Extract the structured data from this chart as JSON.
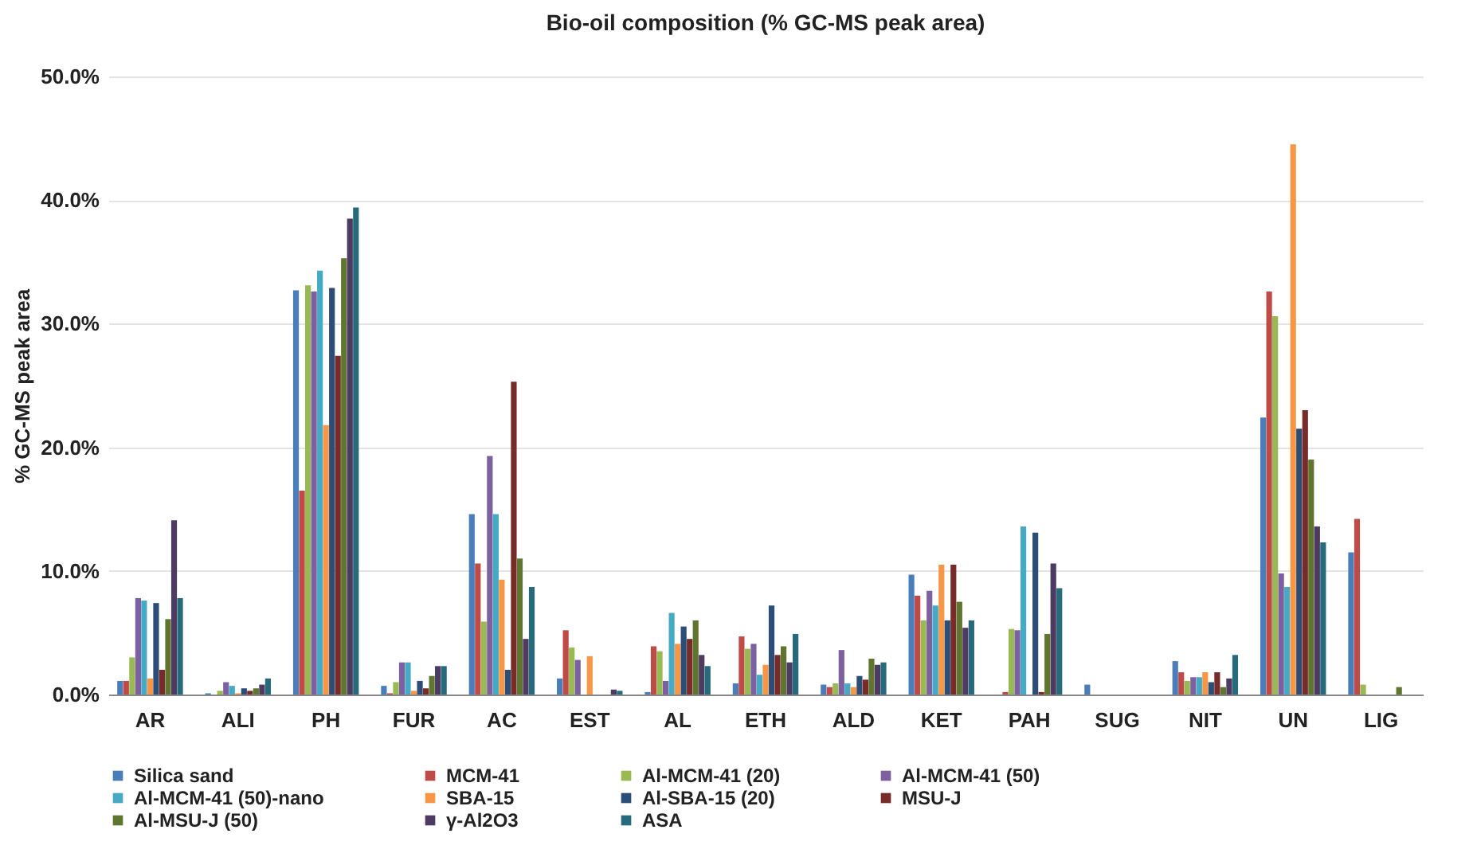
{
  "chart_data": {
    "type": "bar",
    "title": "Bio-oil composition (% GC-MS peak area)",
    "ylabel": "% GC-MS peak area",
    "categories": [
      "AR",
      "ALI",
      "PH",
      "FUR",
      "AC",
      "EST",
      "AL",
      "ETH",
      "ALD",
      "KET",
      "PAH",
      "SUG",
      "NIT",
      "UN",
      "LIG"
    ],
    "ylim": [
      0,
      50
    ],
    "yticks": [
      {
        "value": 0,
        "label": "0.0%"
      },
      {
        "value": 10,
        "label": "10.0%"
      },
      {
        "value": 20,
        "label": "20.0%"
      },
      {
        "value": 30,
        "label": "30.0%"
      },
      {
        "value": 40,
        "label": "40.0%"
      },
      {
        "value": 50,
        "label": "50.0%"
      }
    ],
    "grid": "y",
    "legend": "bottom",
    "series": [
      {
        "name": "Silica sand",
        "color": "#4a7ebb",
        "values": [
          1.1,
          0.1,
          32.7,
          0.7,
          14.6,
          1.3,
          0.2,
          0.9,
          0.8,
          9.7,
          0,
          0.8,
          2.7,
          22.4,
          11.5
        ]
      },
      {
        "name": "MCM-41",
        "color": "#be4b48",
        "values": [
          1.1,
          0,
          16.5,
          0.1,
          10.6,
          5.2,
          3.9,
          4.7,
          0.6,
          8.0,
          0.2,
          0,
          1.8,
          32.6,
          14.2
        ]
      },
      {
        "name": "Al-MCM-41 (20)",
        "color": "#98b954",
        "values": [
          3.0,
          0.3,
          33.1,
          1.0,
          5.9,
          3.8,
          3.5,
          3.7,
          0.9,
          6.0,
          5.3,
          0,
          1.1,
          30.6,
          0.8
        ]
      },
      {
        "name": "Al-MCM-41 (50)",
        "color": "#7d60a0",
        "values": [
          7.8,
          1.0,
          32.6,
          2.6,
          19.3,
          2.8,
          1.1,
          4.1,
          3.6,
          8.4,
          5.2,
          0,
          1.4,
          9.8,
          0
        ]
      },
      {
        "name": "Al-MCM-41 (50)-nano",
        "color": "#46aac5",
        "values": [
          7.6,
          0.7,
          34.3,
          2.6,
          14.6,
          0,
          6.6,
          1.6,
          0.9,
          7.2,
          13.6,
          0,
          1.4,
          8.7,
          0
        ]
      },
      {
        "name": "SBA-15",
        "color": "#f79646",
        "values": [
          1.3,
          0.1,
          21.8,
          0.3,
          9.3,
          3.1,
          4.1,
          2.4,
          0.6,
          10.5,
          0,
          0,
          1.8,
          44.5,
          0
        ]
      },
      {
        "name": "Al-SBA-15 (20)",
        "color": "#2c4d75",
        "values": [
          7.4,
          0.5,
          32.9,
          1.1,
          2.0,
          0,
          5.5,
          7.2,
          1.5,
          6.0,
          13.1,
          0,
          1.0,
          21.5,
          0
        ]
      },
      {
        "name": "MSU-J",
        "color": "#772c2a",
        "values": [
          2.0,
          0.3,
          27.4,
          0.5,
          25.3,
          0,
          4.5,
          3.2,
          1.2,
          10.5,
          0.2,
          0,
          1.8,
          23.0,
          0
        ]
      },
      {
        "name": "Al-MSU-J (50)",
        "color": "#5f7530",
        "values": [
          6.1,
          0.5,
          35.3,
          1.5,
          11.0,
          0,
          6.0,
          3.9,
          2.9,
          7.5,
          4.9,
          0,
          0.6,
          19.0,
          0.6
        ]
      },
      {
        "name": "γ-Al2O3",
        "color": "#4d3b62",
        "values": [
          14.1,
          0.8,
          38.5,
          2.3,
          4.5,
          0.4,
          3.2,
          2.6,
          2.4,
          5.4,
          10.6,
          0,
          1.3,
          13.6,
          0
        ]
      },
      {
        "name": "ASA",
        "color": "#276a7c",
        "values": [
          7.8,
          1.3,
          39.4,
          2.3,
          8.7,
          0.3,
          2.3,
          4.9,
          2.6,
          6.0,
          8.6,
          0,
          3.2,
          12.3,
          0
        ]
      }
    ]
  }
}
